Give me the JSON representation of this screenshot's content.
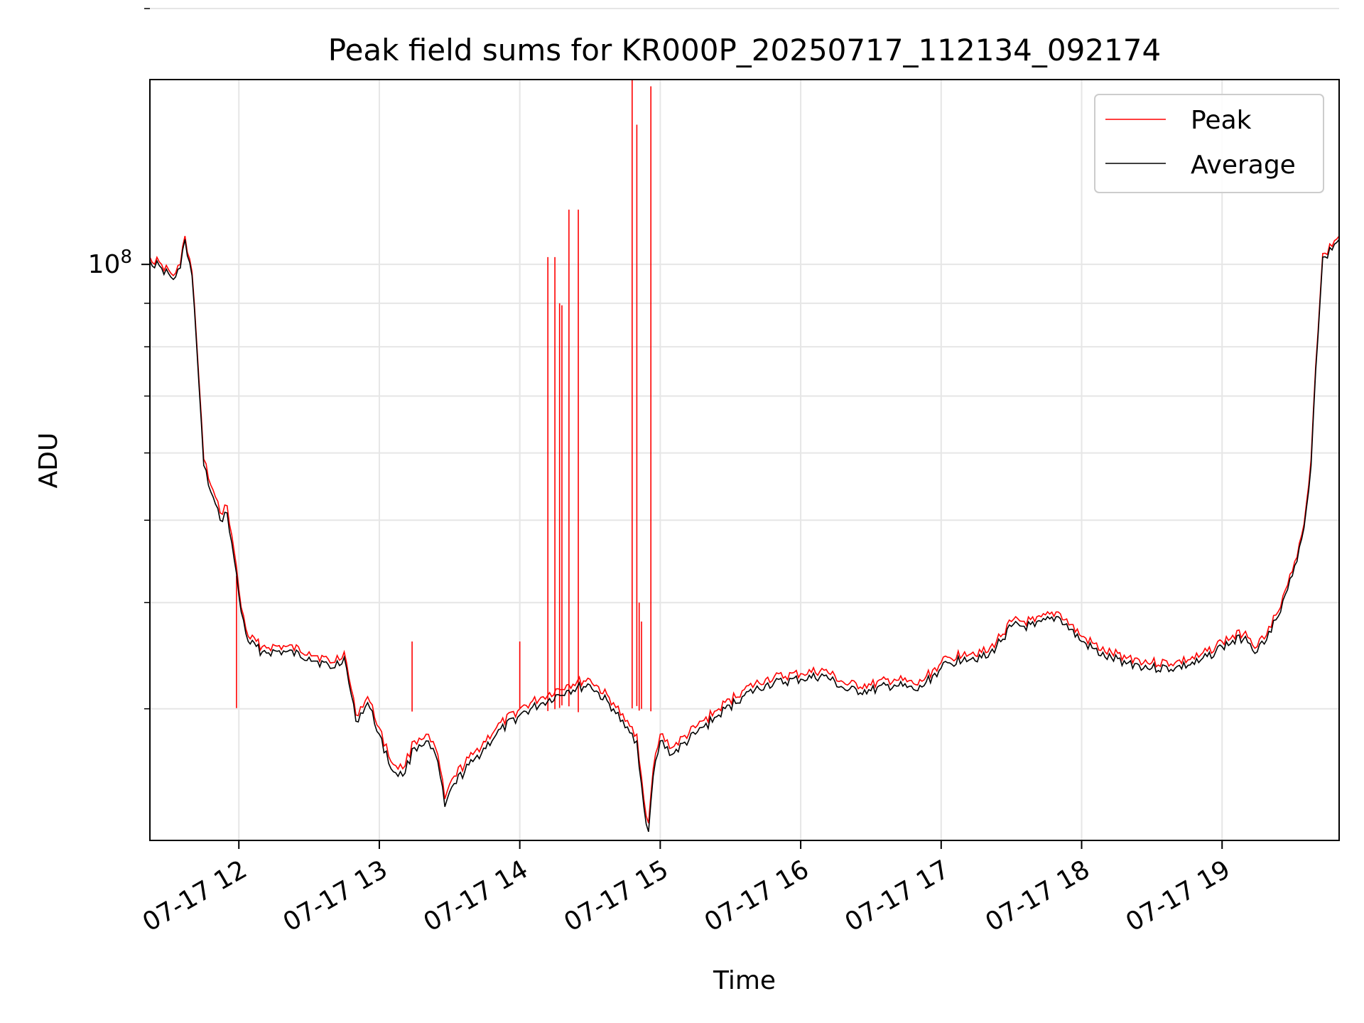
{
  "chart_data": {
    "type": "line",
    "title": "Peak field sums for KR000P_20250717_112134_092174",
    "xlabel": "Time",
    "ylabel": "ADU",
    "yscale": "log",
    "xlim": [
      "07-17 11:22",
      "07-17 19:50"
    ],
    "ylim": [
      21000000,
      165000000
    ],
    "x_ticks": [
      {
        "x": "07-17 12:00",
        "label": "07-17 12"
      },
      {
        "x": "07-17 13:00",
        "label": "07-17 13"
      },
      {
        "x": "07-17 14:00",
        "label": "07-17 14"
      },
      {
        "x": "07-17 15:00",
        "label": "07-17 15"
      },
      {
        "x": "07-17 16:00",
        "label": "07-17 16"
      },
      {
        "x": "07-17 17:00",
        "label": "07-17 17"
      },
      {
        "x": "07-17 18:00",
        "label": "07-17 18"
      },
      {
        "x": "07-17 19:00",
        "label": "07-17 19"
      }
    ],
    "y_ticks": [
      {
        "y": 100000000,
        "base": "10",
        "exp": "8"
      }
    ],
    "y_minor_ticks": [
      30000000,
      40000000,
      50000000,
      60000000,
      70000000,
      80000000,
      90000000,
      200000000
    ],
    "grid": true,
    "legend": {
      "position": "top-right",
      "entries": [
        {
          "name": "Peak",
          "color": "#ff0000"
        },
        {
          "name": "Average",
          "color": "#000000"
        }
      ]
    },
    "series": [
      {
        "name": "Average",
        "color": "#000000",
        "points": [
          [
            "07-17 11:22",
            101000000
          ],
          [
            "07-17 11:27",
            99000000
          ],
          [
            "07-17 11:32",
            96000000
          ],
          [
            "07-17 11:35",
            99000000
          ],
          [
            "07-17 11:37",
            107000000
          ],
          [
            "07-17 11:40",
            97000000
          ],
          [
            "07-17 11:42",
            80000000
          ],
          [
            "07-17 11:45",
            58000000
          ],
          [
            "07-17 11:48",
            54000000
          ],
          [
            "07-17 11:52",
            50000000
          ],
          [
            "07-17 11:55",
            51000000
          ],
          [
            "07-17 11:58",
            45000000
          ],
          [
            "07-17 12:01",
            39000000
          ],
          [
            "07-17 12:04",
            36000000
          ],
          [
            "07-17 12:10",
            35000000
          ],
          [
            "07-17 12:20",
            35000000
          ],
          [
            "07-17 12:30",
            34500000
          ],
          [
            "07-17 12:40",
            33500000
          ],
          [
            "07-17 12:45",
            34500000
          ],
          [
            "07-17 12:50",
            29000000
          ],
          [
            "07-17 12:55",
            30500000
          ],
          [
            "07-17 13:00",
            28000000
          ],
          [
            "07-17 13:05",
            25500000
          ],
          [
            "07-17 13:10",
            25000000
          ],
          [
            "07-17 13:15",
            27000000
          ],
          [
            "07-17 13:20",
            27500000
          ],
          [
            "07-17 13:25",
            26000000
          ],
          [
            "07-17 13:28",
            23000000
          ],
          [
            "07-17 13:32",
            24500000
          ],
          [
            "07-17 13:40",
            26000000
          ],
          [
            "07-17 13:50",
            28000000
          ],
          [
            "07-17 14:00",
            29500000
          ],
          [
            "07-17 14:10",
            30500000
          ],
          [
            "07-17 14:20",
            31500000
          ],
          [
            "07-17 14:30",
            32000000
          ],
          [
            "07-17 14:40",
            30000000
          ],
          [
            "07-17 14:45",
            28500000
          ],
          [
            "07-17 14:50",
            27500000
          ],
          [
            "07-17 14:53",
            23000000
          ],
          [
            "07-17 14:55",
            21500000
          ],
          [
            "07-17 14:57",
            25000000
          ],
          [
            "07-17 15:00",
            27500000
          ],
          [
            "07-17 15:05",
            26500000
          ],
          [
            "07-17 15:15",
            28000000
          ],
          [
            "07-17 15:25",
            29500000
          ],
          [
            "07-17 15:35",
            31000000
          ],
          [
            "07-17 15:45",
            32000000
          ],
          [
            "07-17 16:00",
            32500000
          ],
          [
            "07-17 16:10",
            32800000
          ],
          [
            "07-17 16:20",
            31500000
          ],
          [
            "07-17 16:30",
            31500000
          ],
          [
            "07-17 16:40",
            32000000
          ],
          [
            "07-17 16:50",
            31500000
          ],
          [
            "07-17 17:00",
            33500000
          ],
          [
            "07-17 17:10",
            34500000
          ],
          [
            "07-17 17:20",
            34500000
          ],
          [
            "07-17 17:30",
            37500000
          ],
          [
            "07-17 17:40",
            37500000
          ],
          [
            "07-17 17:50",
            38500000
          ],
          [
            "07-17 18:00",
            36000000
          ],
          [
            "07-17 18:10",
            34500000
          ],
          [
            "07-17 18:20",
            34000000
          ],
          [
            "07-17 18:30",
            33500000
          ],
          [
            "07-17 18:40",
            33500000
          ],
          [
            "07-17 18:50",
            34000000
          ],
          [
            "07-17 19:00",
            35500000
          ],
          [
            "07-17 19:10",
            36500000
          ],
          [
            "07-17 19:15",
            35000000
          ],
          [
            "07-17 19:20",
            37000000
          ],
          [
            "07-17 19:25",
            39000000
          ],
          [
            "07-17 19:30",
            43000000
          ],
          [
            "07-17 19:35",
            49000000
          ],
          [
            "07-17 19:38",
            58000000
          ],
          [
            "07-17 19:40",
            75000000
          ],
          [
            "07-17 19:43",
            102000000
          ],
          [
            "07-17 19:47",
            104000000
          ],
          [
            "07-17 19:50",
            107000000
          ]
        ]
      },
      {
        "name": "Peak",
        "color": "#ff0000",
        "points": [
          [
            "07-17 11:22",
            102000000
          ],
          [
            "07-17 11:27",
            100000000
          ],
          [
            "07-17 11:32",
            97000000
          ],
          [
            "07-17 11:35",
            100000000
          ],
          [
            "07-17 11:37",
            108000000
          ],
          [
            "07-17 11:40",
            98000000
          ],
          [
            "07-17 11:42",
            81000000
          ],
          [
            "07-17 11:45",
            59000000
          ],
          [
            "07-17 11:48",
            55000000
          ],
          [
            "07-17 11:52",
            51000000
          ],
          [
            "07-17 11:55",
            52000000
          ],
          [
            "07-17 11:58",
            46000000
          ],
          [
            "07-17 12:01",
            39500000
          ],
          [
            "07-17 12:04",
            36500000
          ],
          [
            "07-17 12:10",
            35500000
          ],
          [
            "07-17 12:20",
            35500000
          ],
          [
            "07-17 12:30",
            35000000
          ],
          [
            "07-17 12:40",
            34000000
          ],
          [
            "07-17 12:45",
            35000000
          ],
          [
            "07-17 12:50",
            29500000
          ],
          [
            "07-17 12:55",
            31000000
          ],
          [
            "07-17 13:00",
            28500000
          ],
          [
            "07-17 13:05",
            26000000
          ],
          [
            "07-17 13:10",
            25500000
          ],
          [
            "07-17 13:15",
            27500000
          ],
          [
            "07-17 13:20",
            28000000
          ],
          [
            "07-17 13:25",
            26500000
          ],
          [
            "07-17 13:28",
            23500000
          ],
          [
            "07-17 13:32",
            25000000
          ],
          [
            "07-17 13:40",
            26500000
          ],
          [
            "07-17 13:50",
            28500000
          ],
          [
            "07-17 14:00",
            30000000
          ],
          [
            "07-17 14:10",
            31000000
          ],
          [
            "07-17 14:20",
            32000000
          ],
          [
            "07-17 14:30",
            32500000
          ],
          [
            "07-17 14:40",
            30500000
          ],
          [
            "07-17 14:45",
            29000000
          ],
          [
            "07-17 14:50",
            28000000
          ],
          [
            "07-17 14:53",
            23500000
          ],
          [
            "07-17 14:55",
            22000000
          ],
          [
            "07-17 14:57",
            25500000
          ],
          [
            "07-17 15:00",
            28000000
          ],
          [
            "07-17 15:05",
            27000000
          ],
          [
            "07-17 15:15",
            28500000
          ],
          [
            "07-17 15:25",
            30000000
          ],
          [
            "07-17 15:35",
            31500000
          ],
          [
            "07-17 15:45",
            32500000
          ],
          [
            "07-17 16:00",
            33000000
          ],
          [
            "07-17 16:10",
            33300000
          ],
          [
            "07-17 16:20",
            32000000
          ],
          [
            "07-17 16:30",
            32000000
          ],
          [
            "07-17 16:40",
            32500000
          ],
          [
            "07-17 16:50",
            32000000
          ],
          [
            "07-17 17:00",
            34000000
          ],
          [
            "07-17 17:10",
            35000000
          ],
          [
            "07-17 17:20",
            35000000
          ],
          [
            "07-17 17:30",
            38000000
          ],
          [
            "07-17 17:40",
            38000000
          ],
          [
            "07-17 17:50",
            39000000
          ],
          [
            "07-17 18:00",
            36500000
          ],
          [
            "07-17 18:10",
            35000000
          ],
          [
            "07-17 18:20",
            34500000
          ],
          [
            "07-17 18:30",
            34000000
          ],
          [
            "07-17 18:40",
            34000000
          ],
          [
            "07-17 18:50",
            34500000
          ],
          [
            "07-17 19:00",
            36000000
          ],
          [
            "07-17 19:10",
            37000000
          ],
          [
            "07-17 19:15",
            35500000
          ],
          [
            "07-17 19:20",
            37500000
          ],
          [
            "07-17 19:25",
            39500000
          ],
          [
            "07-17 19:30",
            43500000
          ],
          [
            "07-17 19:35",
            49500000
          ],
          [
            "07-17 19:38",
            59000000
          ],
          [
            "07-17 19:40",
            76000000
          ],
          [
            "07-17 19:43",
            103000000
          ],
          [
            "07-17 19:47",
            105000000
          ],
          [
            "07-17 19:50",
            108000000
          ]
        ],
        "spikes": [
          [
            "07-17 11:59",
            43000000
          ],
          [
            "07-17 13:14",
            36000000
          ],
          [
            "07-17 14:00",
            36000000
          ],
          [
            "07-17 14:12",
            102000000
          ],
          [
            "07-17 14:15",
            102000000
          ],
          [
            "07-17 14:17",
            90000000
          ],
          [
            "07-17 14:18",
            89500000
          ],
          [
            "07-17 14:21",
            116000000
          ],
          [
            "07-17 14:25",
            116000000
          ],
          [
            "07-17 14:48",
            165000000
          ],
          [
            "07-17 14:50",
            146000000
          ],
          [
            "07-17 14:51",
            40000000
          ],
          [
            "07-17 14:52",
            38000000
          ],
          [
            "07-17 14:56",
            162000000
          ]
        ]
      }
    ]
  }
}
